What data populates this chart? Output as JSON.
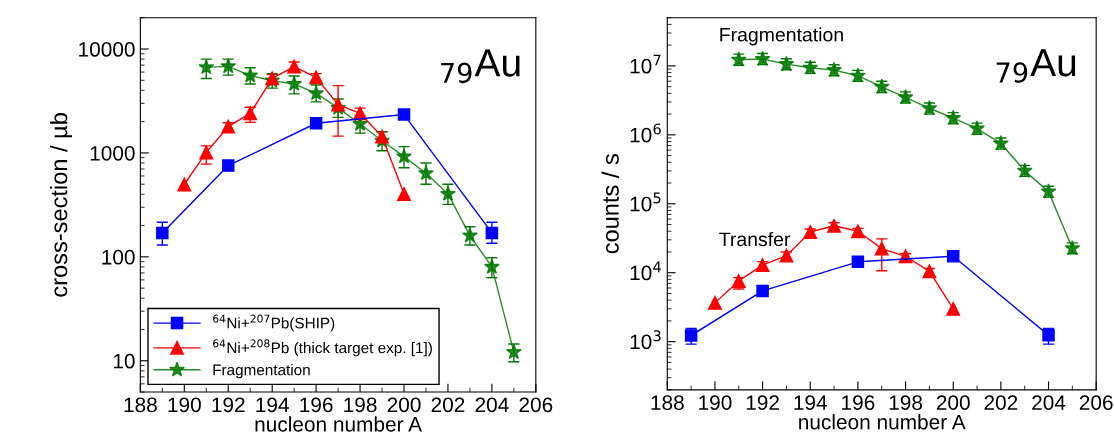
{
  "chart_data": [
    {
      "type": "line",
      "xlabel": "nucleon number A",
      "ylabel": "cross-section / µb",
      "log": "y",
      "xlim": [
        188,
        206
      ],
      "xticks": [
        188,
        190,
        192,
        194,
        196,
        198,
        200,
        202,
        204,
        206
      ],
      "ylim": [
        5,
        20000
      ],
      "yticks": [
        10,
        100,
        1000,
        10000
      ],
      "grid": false,
      "legend": "bottom left",
      "annotations": [
        "$_{79}$Au"
      ],
      "series": [
        {
          "name": "$^{64}$Ni+$^{207}$Pb(SHIP)",
          "color": "#0000ff",
          "marker": "square",
          "x": [
            189,
            192,
            196,
            200,
            204
          ],
          "values": [
            170,
            755,
            1930,
            2340,
            170
          ],
          "errors": [
            [
              130,
              215
            ],
            null,
            null,
            null,
            [
              135,
              215
            ]
          ]
        },
        {
          "name": "$^{64}$Ni+$^{208}$Pb (thick target exp. [1])",
          "color": "#ff0000",
          "marker": "triangle",
          "x": [
            190,
            191,
            192,
            193,
            194,
            195,
            196,
            197,
            198,
            199,
            200
          ],
          "values": [
            497,
            1010,
            1790,
            2400,
            5220,
            6760,
            5340,
            2920,
            2400,
            1440,
            403
          ],
          "errors": [
            null,
            [
              780,
              1170
            ],
            [
              1650,
              1950
            ],
            [
              1970,
              2750
            ],
            [
              4700,
              5700
            ],
            [
              6100,
              7500
            ],
            [
              4900,
              5800
            ],
            [
              1450,
              4440
            ],
            [
              2150,
              2700
            ],
            [
              1300,
              1600
            ],
            null
          ]
        },
        {
          "name": "Fragmentation",
          "color": "#007a00",
          "marker": "star",
          "x": [
            191,
            192,
            193,
            194,
            195,
            196,
            197,
            198,
            199,
            200,
            201,
            202,
            203,
            204,
            205
          ],
          "values": [
            6660,
            6800,
            5540,
            4960,
            4610,
            3750,
            2710,
            1900,
            1310,
            922,
            637,
            403,
            160,
            80,
            12.1
          ],
          "errors": [
            [
              5200,
              8000
            ],
            [
              5600,
              8000
            ],
            [
              4600,
              6600
            ],
            [
              4200,
              5800
            ],
            [
              3700,
              5500
            ],
            [
              3100,
              4500
            ],
            [
              2200,
              3300
            ],
            [
              1550,
              2300
            ],
            [
              1050,
              1600
            ],
            [
              720,
              1150
            ],
            [
              500,
              800
            ],
            [
              320,
              500
            ],
            [
              130,
              195
            ],
            [
              63,
              98
            ],
            [
              9.8,
              14.5
            ]
          ]
        }
      ]
    },
    {
      "type": "line",
      "xlabel": "nucleon number A",
      "ylabel": "counts / s",
      "log": "y",
      "xlim": [
        188,
        206
      ],
      "xticks": [
        188,
        190,
        192,
        194,
        196,
        198,
        200,
        202,
        204,
        206
      ],
      "ylim": [
        200,
        50000000
      ],
      "yticks": [
        {
          "value": 1000,
          "label": "10$^{3}$"
        },
        {
          "value": 10000,
          "label": "10$^{4}$"
        },
        {
          "value": 100000,
          "label": "10$^{5}$"
        },
        {
          "value": 1000000,
          "label": "10$^{6}$"
        },
        {
          "value": 10000000,
          "label": "10$^{7}$"
        }
      ],
      "grid": false,
      "legend": false,
      "annotations": [
        "Fragmentation",
        "Transfer",
        "$_{79}$Au"
      ],
      "series": [
        {
          "color": "#0000ff",
          "marker": "square",
          "x": [
            189,
            192,
            196,
            200,
            204
          ],
          "values": [
            1230,
            5450,
            14400,
            17300,
            1240
          ],
          "errors": [
            [
              920,
              1550
            ],
            null,
            null,
            null,
            [
              920,
              1550
            ]
          ]
        },
        {
          "color": "#ff0000",
          "marker": "triangle",
          "x": [
            190,
            191,
            192,
            193,
            194,
            195,
            196,
            197,
            198,
            199,
            200
          ],
          "values": [
            3650,
            7600,
            12900,
            17700,
            39000,
            48000,
            40000,
            22400,
            17300,
            10500,
            3000
          ],
          "errors": [
            null,
            [
              5800,
              8500
            ],
            [
              11000,
              14500
            ],
            [
              15000,
              20000
            ],
            [
              34000,
              43000
            ],
            [
              42000,
              53000
            ],
            [
              35000,
              44000
            ],
            [
              10700,
              31000
            ],
            [
              15000,
              19000
            ],
            [
              9000,
              11500
            ],
            null
          ]
        },
        {
          "color": "#007a00",
          "marker": "star",
          "x": [
            191,
            192,
            193,
            194,
            195,
            196,
            197,
            198,
            199,
            200,
            201,
            202,
            203,
            204,
            205
          ],
          "values": [
            12300000,
            12600000,
            10600000,
            9400000,
            8700000,
            7200000,
            4960000,
            3500000,
            2430000,
            1750000,
            1230000,
            750000,
            300000,
            150000,
            22600
          ],
          "errors": [
            [
              10200000,
              14800000
            ],
            [
              10500000,
              15100000
            ],
            [
              8800000,
              12700000
            ],
            [
              7800000,
              11300000
            ],
            [
              7200000,
              10400000
            ],
            [
              6000000,
              8600000
            ],
            [
              4100000,
              6000000
            ],
            [
              2900000,
              4200000
            ],
            [
              2000000,
              2900000
            ],
            [
              1450000,
              2100000
            ],
            [
              1020000,
              1480000
            ],
            [
              620000,
              900000
            ],
            [
              250000,
              360000
            ],
            [
              125000,
              180000
            ],
            [
              18800,
              27100
            ]
          ]
        }
      ]
    }
  ]
}
